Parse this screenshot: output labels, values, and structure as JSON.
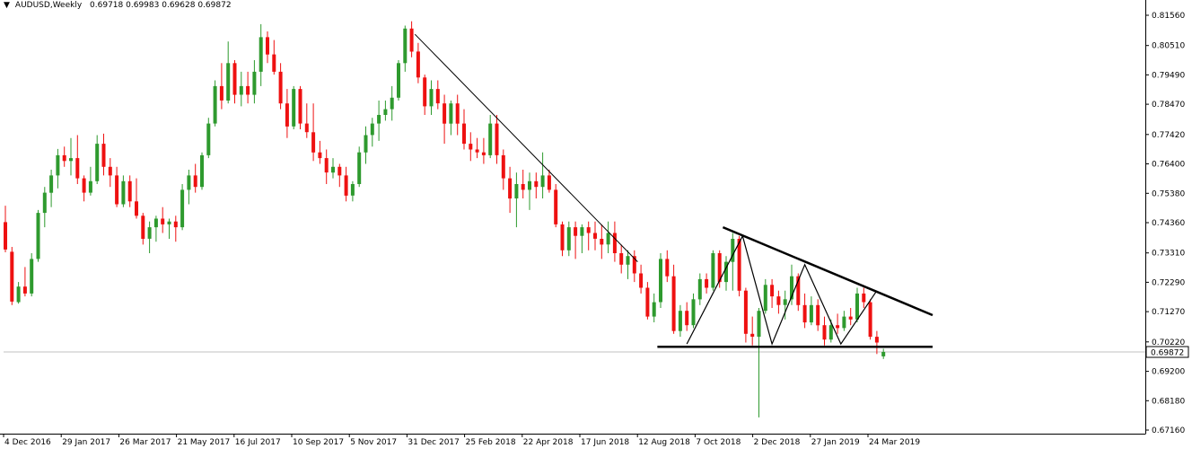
{
  "header": {
    "menu_icon": "triangle-down-icon",
    "symbol": "AUDUSD,Weekly",
    "open": "0.69718",
    "high": "0.69983",
    "low": "0.69628",
    "close": "0.69872"
  },
  "colors": {
    "bull": "#2e9a2e",
    "bear": "#ee1111",
    "axis": "#000000",
    "current_price_line": "#c0c0c0"
  },
  "current_price_label": "0.69872",
  "chart_data": {
    "type": "candlestick",
    "timeframe": "weekly",
    "ylim": [
      0.6716,
      0.8162
    ],
    "y_ticks": [
      "0.81560",
      "0.80510",
      "0.79490",
      "0.78470",
      "0.77420",
      "0.76400",
      "0.75380",
      "0.74360",
      "0.73310",
      "0.72290",
      "0.71270",
      "0.70220",
      "0.69200",
      "0.68180",
      "0.67160"
    ],
    "x_ticks": [
      "4 Dec 2016",
      "29 Jan 2017",
      "26 Mar 2017",
      "21 May 2017",
      "16 Jul 2017",
      "10 Sep 2017",
      "5 Nov 2017",
      "31 Dec 2017",
      "25 Feb 2018",
      "22 Apr 2018",
      "17 Jun 2018",
      "12 Aug 2018",
      "7 Oct 2018",
      "2 Dec 2018",
      "27 Jan 2019",
      "24 Mar 2019"
    ],
    "candles": [
      {
        "o": 0.7438,
        "h": 0.7495,
        "l": 0.7333,
        "c": 0.7343
      },
      {
        "o": 0.7335,
        "h": 0.7352,
        "l": 0.715,
        "c": 0.7162
      },
      {
        "o": 0.716,
        "h": 0.723,
        "l": 0.7155,
        "c": 0.7214
      },
      {
        "o": 0.7214,
        "h": 0.7282,
        "l": 0.718,
        "c": 0.719
      },
      {
        "o": 0.719,
        "h": 0.733,
        "l": 0.718,
        "c": 0.731
      },
      {
        "o": 0.731,
        "h": 0.748,
        "l": 0.73,
        "c": 0.747
      },
      {
        "o": 0.747,
        "h": 0.756,
        "l": 0.742,
        "c": 0.754
      },
      {
        "o": 0.754,
        "h": 0.762,
        "l": 0.749,
        "c": 0.76
      },
      {
        "o": 0.76,
        "h": 0.7692,
        "l": 0.7555,
        "c": 0.767
      },
      {
        "o": 0.767,
        "h": 0.77,
        "l": 0.763,
        "c": 0.765
      },
      {
        "o": 0.765,
        "h": 0.773,
        "l": 0.76,
        "c": 0.766
      },
      {
        "o": 0.766,
        "h": 0.774,
        "l": 0.757,
        "c": 0.759
      },
      {
        "o": 0.759,
        "h": 0.76,
        "l": 0.751,
        "c": 0.754
      },
      {
        "o": 0.754,
        "h": 0.763,
        "l": 0.753,
        "c": 0.758
      },
      {
        "o": 0.758,
        "h": 0.774,
        "l": 0.757,
        "c": 0.771
      },
      {
        "o": 0.771,
        "h": 0.7745,
        "l": 0.76,
        "c": 0.763
      },
      {
        "o": 0.763,
        "h": 0.766,
        "l": 0.756,
        "c": 0.76
      },
      {
        "o": 0.76,
        "h": 0.763,
        "l": 0.749,
        "c": 0.75
      },
      {
        "o": 0.75,
        "h": 0.76,
        "l": 0.749,
        "c": 0.758
      },
      {
        "o": 0.758,
        "h": 0.76,
        "l": 0.749,
        "c": 0.751
      },
      {
        "o": 0.751,
        "h": 0.759,
        "l": 0.745,
        "c": 0.746
      },
      {
        "o": 0.746,
        "h": 0.747,
        "l": 0.736,
        "c": 0.738
      },
      {
        "o": 0.738,
        "h": 0.744,
        "l": 0.733,
        "c": 0.742
      },
      {
        "o": 0.742,
        "h": 0.746,
        "l": 0.737,
        "c": 0.745
      },
      {
        "o": 0.745,
        "h": 0.749,
        "l": 0.74,
        "c": 0.743
      },
      {
        "o": 0.743,
        "h": 0.745,
        "l": 0.738,
        "c": 0.744
      },
      {
        "o": 0.744,
        "h": 0.746,
        "l": 0.737,
        "c": 0.742
      },
      {
        "o": 0.742,
        "h": 0.757,
        "l": 0.741,
        "c": 0.755
      },
      {
        "o": 0.755,
        "h": 0.762,
        "l": 0.75,
        "c": 0.76
      },
      {
        "o": 0.76,
        "h": 0.764,
        "l": 0.754,
        "c": 0.756
      },
      {
        "o": 0.756,
        "h": 0.768,
        "l": 0.755,
        "c": 0.767
      },
      {
        "o": 0.767,
        "h": 0.78,
        "l": 0.766,
        "c": 0.778
      },
      {
        "o": 0.778,
        "h": 0.793,
        "l": 0.777,
        "c": 0.791
      },
      {
        "o": 0.791,
        "h": 0.799,
        "l": 0.783,
        "c": 0.786
      },
      {
        "o": 0.786,
        "h": 0.8065,
        "l": 0.785,
        "c": 0.799
      },
      {
        "o": 0.799,
        "h": 0.8,
        "l": 0.785,
        "c": 0.788
      },
      {
        "o": 0.788,
        "h": 0.796,
        "l": 0.784,
        "c": 0.791
      },
      {
        "o": 0.791,
        "h": 0.796,
        "l": 0.785,
        "c": 0.788
      },
      {
        "o": 0.788,
        "h": 0.8,
        "l": 0.785,
        "c": 0.796
      },
      {
        "o": 0.796,
        "h": 0.8125,
        "l": 0.791,
        "c": 0.808
      },
      {
        "o": 0.808,
        "h": 0.81,
        "l": 0.799,
        "c": 0.802
      },
      {
        "o": 0.802,
        "h": 0.807,
        "l": 0.795,
        "c": 0.796
      },
      {
        "o": 0.796,
        "h": 0.799,
        "l": 0.783,
        "c": 0.785
      },
      {
        "o": 0.785,
        "h": 0.79,
        "l": 0.773,
        "c": 0.777
      },
      {
        "o": 0.777,
        "h": 0.791,
        "l": 0.776,
        "c": 0.79
      },
      {
        "o": 0.79,
        "h": 0.791,
        "l": 0.776,
        "c": 0.778
      },
      {
        "o": 0.778,
        "h": 0.785,
        "l": 0.773,
        "c": 0.775
      },
      {
        "o": 0.775,
        "h": 0.785,
        "l": 0.765,
        "c": 0.768
      },
      {
        "o": 0.768,
        "h": 0.772,
        "l": 0.764,
        "c": 0.766
      },
      {
        "o": 0.766,
        "h": 0.769,
        "l": 0.757,
        "c": 0.761
      },
      {
        "o": 0.761,
        "h": 0.766,
        "l": 0.759,
        "c": 0.763
      },
      {
        "o": 0.763,
        "h": 0.764,
        "l": 0.756,
        "c": 0.76
      },
      {
        "o": 0.76,
        "h": 0.763,
        "l": 0.751,
        "c": 0.753
      },
      {
        "o": 0.753,
        "h": 0.758,
        "l": 0.751,
        "c": 0.757
      },
      {
        "o": 0.757,
        "h": 0.77,
        "l": 0.756,
        "c": 0.768
      },
      {
        "o": 0.768,
        "h": 0.777,
        "l": 0.764,
        "c": 0.774
      },
      {
        "o": 0.774,
        "h": 0.78,
        "l": 0.77,
        "c": 0.778
      },
      {
        "o": 0.778,
        "h": 0.786,
        "l": 0.772,
        "c": 0.781
      },
      {
        "o": 0.781,
        "h": 0.786,
        "l": 0.779,
        "c": 0.783
      },
      {
        "o": 0.783,
        "h": 0.791,
        "l": 0.779,
        "c": 0.787
      },
      {
        "o": 0.787,
        "h": 0.8,
        "l": 0.786,
        "c": 0.799
      },
      {
        "o": 0.799,
        "h": 0.812,
        "l": 0.796,
        "c": 0.811
      },
      {
        "o": 0.811,
        "h": 0.8135,
        "l": 0.801,
        "c": 0.803
      },
      {
        "o": 0.803,
        "h": 0.806,
        "l": 0.792,
        "c": 0.794
      },
      {
        "o": 0.794,
        "h": 0.795,
        "l": 0.781,
        "c": 0.784
      },
      {
        "o": 0.784,
        "h": 0.793,
        "l": 0.781,
        "c": 0.79
      },
      {
        "o": 0.79,
        "h": 0.793,
        "l": 0.783,
        "c": 0.785
      },
      {
        "o": 0.785,
        "h": 0.788,
        "l": 0.771,
        "c": 0.778
      },
      {
        "o": 0.778,
        "h": 0.786,
        "l": 0.774,
        "c": 0.785
      },
      {
        "o": 0.785,
        "h": 0.788,
        "l": 0.774,
        "c": 0.778
      },
      {
        "o": 0.778,
        "h": 0.783,
        "l": 0.769,
        "c": 0.771
      },
      {
        "o": 0.771,
        "h": 0.775,
        "l": 0.765,
        "c": 0.769
      },
      {
        "o": 0.769,
        "h": 0.773,
        "l": 0.766,
        "c": 0.768
      },
      {
        "o": 0.768,
        "h": 0.773,
        "l": 0.764,
        "c": 0.767
      },
      {
        "o": 0.767,
        "h": 0.781,
        "l": 0.766,
        "c": 0.778
      },
      {
        "o": 0.778,
        "h": 0.781,
        "l": 0.764,
        "c": 0.767
      },
      {
        "o": 0.767,
        "h": 0.769,
        "l": 0.755,
        "c": 0.759
      },
      {
        "o": 0.759,
        "h": 0.763,
        "l": 0.747,
        "c": 0.752
      },
      {
        "o": 0.752,
        "h": 0.761,
        "l": 0.742,
        "c": 0.757
      },
      {
        "o": 0.757,
        "h": 0.762,
        "l": 0.752,
        "c": 0.755
      },
      {
        "o": 0.755,
        "h": 0.761,
        "l": 0.748,
        "c": 0.758
      },
      {
        "o": 0.758,
        "h": 0.761,
        "l": 0.752,
        "c": 0.756
      },
      {
        "o": 0.756,
        "h": 0.768,
        "l": 0.752,
        "c": 0.76
      },
      {
        "o": 0.76,
        "h": 0.762,
        "l": 0.754,
        "c": 0.755
      },
      {
        "o": 0.755,
        "h": 0.757,
        "l": 0.742,
        "c": 0.743
      },
      {
        "o": 0.743,
        "h": 0.744,
        "l": 0.732,
        "c": 0.734
      },
      {
        "o": 0.734,
        "h": 0.744,
        "l": 0.732,
        "c": 0.742
      },
      {
        "o": 0.742,
        "h": 0.744,
        "l": 0.731,
        "c": 0.739
      },
      {
        "o": 0.739,
        "h": 0.743,
        "l": 0.733,
        "c": 0.742
      },
      {
        "o": 0.742,
        "h": 0.744,
        "l": 0.734,
        "c": 0.74
      },
      {
        "o": 0.74,
        "h": 0.744,
        "l": 0.734,
        "c": 0.738
      },
      {
        "o": 0.738,
        "h": 0.743,
        "l": 0.731,
        "c": 0.736
      },
      {
        "o": 0.736,
        "h": 0.744,
        "l": 0.733,
        "c": 0.74
      },
      {
        "o": 0.74,
        "h": 0.744,
        "l": 0.73,
        "c": 0.733
      },
      {
        "o": 0.733,
        "h": 0.736,
        "l": 0.726,
        "c": 0.729
      },
      {
        "o": 0.729,
        "h": 0.734,
        "l": 0.724,
        "c": 0.732
      },
      {
        "o": 0.732,
        "h": 0.734,
        "l": 0.723,
        "c": 0.726
      },
      {
        "o": 0.726,
        "h": 0.729,
        "l": 0.719,
        "c": 0.721
      },
      {
        "o": 0.721,
        "h": 0.723,
        "l": 0.71,
        "c": 0.711
      },
      {
        "o": 0.711,
        "h": 0.719,
        "l": 0.709,
        "c": 0.716
      },
      {
        "o": 0.716,
        "h": 0.733,
        "l": 0.714,
        "c": 0.731
      },
      {
        "o": 0.731,
        "h": 0.734,
        "l": 0.723,
        "c": 0.725
      },
      {
        "o": 0.725,
        "h": 0.729,
        "l": 0.705,
        "c": 0.706
      },
      {
        "o": 0.706,
        "h": 0.715,
        "l": 0.704,
        "c": 0.713
      },
      {
        "o": 0.713,
        "h": 0.716,
        "l": 0.706,
        "c": 0.708
      },
      {
        "o": 0.708,
        "h": 0.719,
        "l": 0.707,
        "c": 0.717
      },
      {
        "o": 0.717,
        "h": 0.726,
        "l": 0.715,
        "c": 0.724
      },
      {
        "o": 0.724,
        "h": 0.726,
        "l": 0.719,
        "c": 0.721
      },
      {
        "o": 0.721,
        "h": 0.734,
        "l": 0.72,
        "c": 0.733
      },
      {
        "o": 0.733,
        "h": 0.734,
        "l": 0.721,
        "c": 0.723
      },
      {
        "o": 0.723,
        "h": 0.732,
        "l": 0.72,
        "c": 0.73
      },
      {
        "o": 0.73,
        "h": 0.74,
        "l": 0.72,
        "c": 0.738
      },
      {
        "o": 0.738,
        "h": 0.739,
        "l": 0.718,
        "c": 0.72
      },
      {
        "o": 0.72,
        "h": 0.721,
        "l": 0.702,
        "c": 0.705
      },
      {
        "o": 0.705,
        "h": 0.711,
        "l": 0.701,
        "c": 0.704
      },
      {
        "o": 0.704,
        "h": 0.714,
        "l": 0.676,
        "c": 0.713
      },
      {
        "o": 0.713,
        "h": 0.724,
        "l": 0.712,
        "c": 0.722
      },
      {
        "o": 0.722,
        "h": 0.724,
        "l": 0.714,
        "c": 0.718
      },
      {
        "o": 0.718,
        "h": 0.72,
        "l": 0.712,
        "c": 0.715
      },
      {
        "o": 0.715,
        "h": 0.72,
        "l": 0.71,
        "c": 0.717
      },
      {
        "o": 0.717,
        "h": 0.729,
        "l": 0.715,
        "c": 0.725
      },
      {
        "o": 0.725,
        "h": 0.726,
        "l": 0.713,
        "c": 0.715
      },
      {
        "o": 0.715,
        "h": 0.719,
        "l": 0.707,
        "c": 0.709
      },
      {
        "o": 0.709,
        "h": 0.718,
        "l": 0.708,
        "c": 0.715
      },
      {
        "o": 0.715,
        "h": 0.717,
        "l": 0.706,
        "c": 0.708
      },
      {
        "o": 0.708,
        "h": 0.711,
        "l": 0.701,
        "c": 0.703
      },
      {
        "o": 0.703,
        "h": 0.71,
        "l": 0.702,
        "c": 0.708
      },
      {
        "o": 0.708,
        "h": 0.712,
        "l": 0.705,
        "c": 0.707
      },
      {
        "o": 0.707,
        "h": 0.713,
        "l": 0.706,
        "c": 0.711
      },
      {
        "o": 0.711,
        "h": 0.714,
        "l": 0.708,
        "c": 0.71
      },
      {
        "o": 0.71,
        "h": 0.721,
        "l": 0.709,
        "c": 0.719
      },
      {
        "o": 0.719,
        "h": 0.721,
        "l": 0.714,
        "c": 0.716
      },
      {
        "o": 0.716,
        "h": 0.717,
        "l": 0.703,
        "c": 0.704
      },
      {
        "o": 0.704,
        "h": 0.706,
        "l": 0.698,
        "c": 0.702
      },
      {
        "o": 0.69718,
        "h": 0.69983,
        "l": 0.69628,
        "c": 0.69872
      }
    ],
    "trendlines": [
      {
        "name": "descending-trendline",
        "from": {
          "i": 62.5,
          "p": 0.809
        },
        "to": {
          "i": 96.5,
          "p": 0.73
        }
      },
      {
        "name": "triangle-upper-line",
        "from": {
          "i": 109.5,
          "p": 0.742
        },
        "to": {
          "i": 141.5,
          "p": 0.7115
        }
      },
      {
        "name": "triangle-base-line",
        "from": {
          "i": 99.5,
          "p": 0.7005
        },
        "to": {
          "i": 141.5,
          "p": 0.7005
        }
      }
    ],
    "zigzag": [
      {
        "i": 104,
        "p": 0.7015
      },
      {
        "i": 112.5,
        "p": 0.739
      },
      {
        "i": 117,
        "p": 0.7015
      },
      {
        "i": 122,
        "p": 0.729
      },
      {
        "i": 127.5,
        "p": 0.7015
      },
      {
        "i": 133,
        "p": 0.72
      }
    ]
  }
}
